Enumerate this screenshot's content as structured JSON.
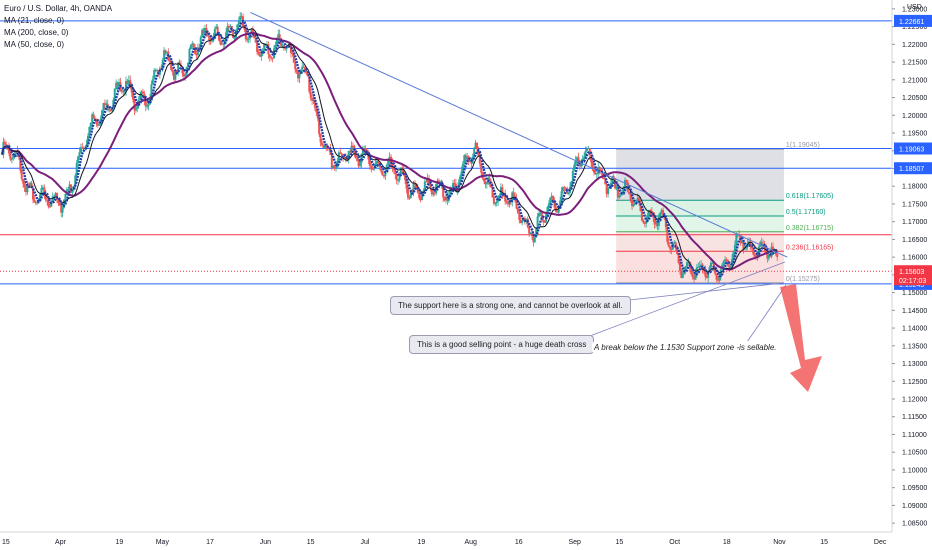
{
  "legend": {
    "title": "Euro / U.S. Dollar, 4h, OANDA",
    "ma1": "MA (21, close, 0)",
    "ma2": "MA (200, close, 0)",
    "ma3": "MA (50, close, 0)"
  },
  "annotations": {
    "support": "The support here is a strong one, and cannot be overlook at all.",
    "death_cross": "This is a good selling point - a huge death cross",
    "break": "A break below the 1.1530 Support zone -is sellable."
  },
  "colors": {
    "bull": "#26a69a",
    "bear": "#ef5350",
    "ma21": "#1f3fa8",
    "ma200": "#7b1f7a",
    "ma50": "#131722",
    "hline_blue": "#2962ff",
    "hline_red": "#f23645",
    "trendline": "#5b7bd6",
    "arrow": "#f25a5a"
  },
  "chart_data": {
    "type": "candlestick",
    "title": "Euro / U.S. Dollar, 4h, OANDA",
    "currency": "USD",
    "ylim": [
      1.0825,
      1.2325
    ],
    "y_ticks": [
      "1.08500",
      "1.09000",
      "1.09500",
      "1.10000",
      "1.10500",
      "1.11000",
      "1.11500",
      "1.12000",
      "1.12500",
      "1.13000",
      "1.13500",
      "1.14000",
      "1.14500",
      "1.15000",
      "1.15500",
      "1.16000",
      "1.16500",
      "1.17000",
      "1.17500",
      "1.18000",
      "1.18500",
      "1.19000",
      "1.19500",
      "1.20000",
      "1.20500",
      "1.21000",
      "1.21500",
      "1.22000",
      "1.22500",
      "1.23000",
      "1.23500"
    ],
    "x_ticks": [
      {
        "label": "15",
        "x": 0.0
      },
      {
        "label": "Apr",
        "x": 17
      },
      {
        "label": "19",
        "x": 35
      },
      {
        "label": "May",
        "x": 47
      },
      {
        "label": "17",
        "x": 62
      },
      {
        "label": "Jun",
        "x": 78
      },
      {
        "label": "15",
        "x": 92
      },
      {
        "label": "Jul",
        "x": 108
      },
      {
        "label": "19",
        "x": 125
      },
      {
        "label": "Aug",
        "x": 139
      },
      {
        "label": "16",
        "x": 154
      },
      {
        "label": "Sep",
        "x": 170
      },
      {
        "label": "15",
        "x": 184
      },
      {
        "label": "Oct",
        "x": 200
      },
      {
        "label": "18",
        "x": 216
      },
      {
        "label": "Nov",
        "x": 231
      },
      {
        "label": "15",
        "x": 245
      },
      {
        "label": "Dec",
        "x": 261
      }
    ],
    "x_range": [
      0,
      265
    ],
    "close_path": [
      [
        0,
        1.19
      ],
      [
        4,
        1.187
      ],
      [
        8,
        1.18
      ],
      [
        12,
        1.176
      ],
      [
        16,
        1.174
      ],
      [
        19,
        1.178
      ],
      [
        24,
        1.19
      ],
      [
        28,
        1.198
      ],
      [
        32,
        1.205
      ],
      [
        36,
        1.208
      ],
      [
        40,
        1.203
      ],
      [
        44,
        1.208
      ],
      [
        48,
        1.215
      ],
      [
        52,
        1.212
      ],
      [
        56,
        1.218
      ],
      [
        60,
        1.22
      ],
      [
        64,
        1.223
      ],
      [
        68,
        1.224
      ],
      [
        72,
        1.223
      ],
      [
        76,
        1.221
      ],
      [
        80,
        1.218
      ],
      [
        84,
        1.219
      ],
      [
        88,
        1.215
      ],
      [
        91,
        1.213
      ],
      [
        93,
        1.2
      ],
      [
        95,
        1.192
      ],
      [
        98,
        1.188
      ],
      [
        102,
        1.19
      ],
      [
        106,
        1.187
      ],
      [
        110,
        1.188
      ],
      [
        114,
        1.185
      ],
      [
        118,
        1.182
      ],
      [
        122,
        1.18
      ],
      [
        126,
        1.179
      ],
      [
        130,
        1.178
      ],
      [
        134,
        1.18
      ],
      [
        138,
        1.186
      ],
      [
        141,
        1.188
      ],
      [
        144,
        1.183
      ],
      [
        148,
        1.177
      ],
      [
        152,
        1.174
      ],
      [
        156,
        1.17
      ],
      [
        159,
        1.168
      ],
      [
        162,
        1.172
      ],
      [
        166,
        1.176
      ],
      [
        170,
        1.184
      ],
      [
        173,
        1.188
      ],
      [
        176,
        1.186
      ],
      [
        180,
        1.183
      ],
      [
        184,
        1.178
      ],
      [
        188,
        1.176
      ],
      [
        192,
        1.172
      ],
      [
        196,
        1.17
      ],
      [
        199,
        1.164
      ],
      [
        202,
        1.159
      ],
      [
        205,
        1.157
      ],
      [
        208,
        1.154
      ],
      [
        211,
        1.156
      ],
      [
        214,
        1.158
      ],
      [
        217,
        1.16
      ],
      [
        220,
        1.164
      ],
      [
        223,
        1.162
      ],
      [
        226,
        1.164
      ],
      [
        229,
        1.161
      ],
      [
        231,
        1.1575
      ]
    ],
    "moving_averages": [
      {
        "name": "MA (21, close, 0)",
        "period": 21
      },
      {
        "name": "MA (200, close, 0)",
        "period": 200
      },
      {
        "name": "MA (50, close, 0)",
        "period": 50
      }
    ],
    "horizontal_lines": [
      {
        "price": 1.22661,
        "color": "blue",
        "label": "1.22661"
      },
      {
        "price": 1.19063,
        "color": "blue",
        "label": "1.19063"
      },
      {
        "price": 1.18507,
        "color": "blue",
        "label": "1.18507"
      },
      {
        "price": 1.1663,
        "color": "red"
      },
      {
        "price": 1.15603,
        "color": "red-dotted"
      },
      {
        "price": 1.15245,
        "color": "blue",
        "label": "1.15245"
      }
    ],
    "price_label": {
      "price": "1.15603",
      "timer": "02:17:03"
    },
    "trendline": {
      "from": [
        74,
        1.229
      ],
      "to": [
        234,
        1.16
      ]
    },
    "fibonacci": {
      "x_start": 183,
      "x_end": 233,
      "levels": [
        {
          "ratio": "1",
          "price": 1.19045,
          "label": "1(1.19045)"
        },
        {
          "ratio": "0.618",
          "price": 1.17605,
          "label": "0.618(1.17605)"
        },
        {
          "ratio": "0.5",
          "price": 1.1716,
          "label": "0.5(1.17160)"
        },
        {
          "ratio": "0.382",
          "price": 1.16715,
          "label": "0.382(1.16715)"
        },
        {
          "ratio": "0.236",
          "price": 1.16165,
          "label": "0.236(1.16165)"
        },
        {
          "ratio": "0",
          "price": 1.15275,
          "label": "0(1.15275)"
        }
      ]
    }
  }
}
